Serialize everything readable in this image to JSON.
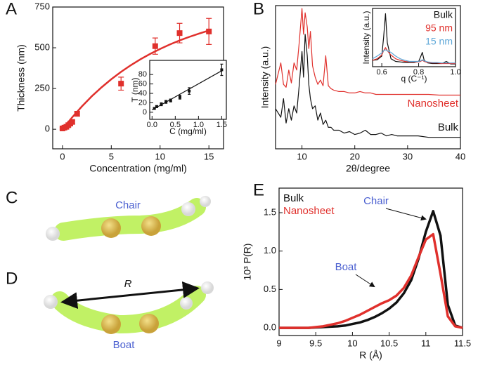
{
  "chart_data": [
    {
      "type": "scatter",
      "label": "A",
      "x_label": "Concentration (mg/ml)",
      "y_label": "Thickness (nm)",
      "xlim": [
        -1,
        16.5
      ],
      "ylim": [
        -120,
        750
      ],
      "xticks": [
        0,
        5,
        10,
        15
      ],
      "yticks": [
        0,
        250,
        500,
        750
      ],
      "series": [
        {
          "style": "line",
          "color": "#e0302c",
          "x": [
            0,
            1,
            2,
            3,
            4,
            5,
            6,
            7,
            8,
            9,
            10,
            11,
            12,
            13,
            14,
            15
          ],
          "values": [
            0,
            74,
            141,
            202,
            257,
            307,
            352,
            393,
            430,
            463,
            493,
            520,
            545,
            567,
            587,
            606
          ]
        },
        {
          "style": "markers",
          "color": "#e0302c",
          "x": [
            0,
            0.2,
            0.4,
            0.6,
            0.8,
            1,
            1.5,
            6,
            9.5,
            12,
            15
          ],
          "values": [
            5,
            10,
            15,
            25,
            35,
            45,
            95,
            280,
            510,
            590,
            600
          ],
          "errors": [
            5,
            5,
            5,
            5,
            5,
            8,
            15,
            40,
            50,
            60,
            80
          ]
        }
      ]
    },
    {
      "type": "scatter",
      "x_label": "C (mg/ml)",
      "y_label": "T (nm)",
      "xlim": [
        -0.05,
        1.6
      ],
      "ylim": [
        -15,
        110
      ],
      "xticks": [
        {
          "value": 0,
          "label": "0.0"
        },
        0.5,
        {
          "value": 1,
          "label": "1.0"
        },
        1.5
      ],
      "yticks": [
        0,
        20,
        40,
        60,
        80
      ],
      "series": [
        {
          "style": "line",
          "color": "#111111",
          "x": [
            0,
            1.5
          ],
          "values": [
            5,
            88
          ]
        },
        {
          "style": "markers",
          "color": "#111111",
          "x": [
            0.05,
            0.1,
            0.2,
            0.3,
            0.4,
            0.6,
            0.8,
            1.5
          ],
          "values": [
            8,
            12,
            17,
            22,
            25,
            32,
            45,
            90
          ],
          "errors": [
            2,
            2,
            3,
            3,
            3,
            4,
            7,
            12
          ]
        }
      ]
    },
    {
      "type": "line",
      "label": "B",
      "x_label": "2θ/degree",
      "y_label": "Intensity (a.u.)",
      "xlim": [
        5,
        40
      ],
      "ylim": [
        0,
        10
      ],
      "xticks": [
        10,
        20,
        30,
        40
      ],
      "x": [
        5,
        6,
        6.5,
        7,
        7.5,
        8,
        8.5,
        9,
        9.5,
        10,
        10.3,
        10.6,
        11,
        11.3,
        11.6,
        12,
        12.5,
        13,
        13.5,
        14,
        14.5,
        15,
        15.5,
        16,
        17,
        18,
        19,
        20,
        21,
        22,
        23,
        24,
        25,
        26,
        27,
        28,
        30,
        32,
        34,
        36,
        38,
        40
      ],
      "series": [
        {
          "name": "Bulk",
          "color": "#111111",
          "values": [
            2.8,
            2.2,
            3.5,
            1.8,
            2.8,
            2,
            3,
            2.5,
            4.5,
            6.8,
            5,
            8,
            6.5,
            4.5,
            3.5,
            2.8,
            3,
            2,
            2.5,
            1.7,
            2,
            1.5,
            1.5,
            1.3,
            1.3,
            1.1,
            1.2,
            1,
            1.1,
            1.3,
            1,
            1,
            1.1,
            0.9,
            1,
            0.9,
            0.9,
            0.9,
            0.8,
            0.8,
            0.8,
            0.8
          ]
        },
        {
          "name": "Nanosheet",
          "color": "#e0302c",
          "values": [
            4.5,
            6,
            4.5,
            4.3,
            5.5,
            4.6,
            6,
            5.5,
            7.5,
            9.8,
            8,
            9.5,
            8.5,
            7,
            8.2,
            5.8,
            5,
            4.5,
            4.8,
            4.4,
            6.5,
            4.4,
            4.2,
            4.1,
            4,
            4,
            3.9,
            3.9,
            4,
            3.9,
            3.9,
            3.8,
            3.8,
            3.8,
            3.8,
            3.8,
            3.8,
            3.8,
            3.8,
            3.75,
            3.75,
            3.75
          ]
        }
      ]
    },
    {
      "type": "line",
      "x_label": "q (C⁻¹)",
      "y_label": "Intensity (a.u.)",
      "xlim": [
        0.55,
        1.0
      ],
      "ylim": [
        0,
        1.1
      ],
      "xticks": [
        0.6,
        0.8,
        {
          "value": 1,
          "label": "1.0"
        }
      ],
      "x": [
        0.55,
        0.575,
        0.6,
        0.61,
        0.62,
        0.63,
        0.65,
        0.675,
        0.7,
        0.725,
        0.75,
        0.775,
        0.8,
        0.81,
        0.82,
        0.83,
        0.85,
        0.875,
        0.9,
        0.925,
        0.95,
        0.975,
        1.0
      ],
      "series": [
        {
          "name": "Bulk",
          "color": "#111111",
          "values": [
            0.12,
            0.13,
            0.2,
            0.55,
            1.0,
            0.45,
            0.15,
            0.1,
            0.09,
            0.08,
            0.08,
            0.08,
            0.1,
            0.18,
            0.27,
            0.12,
            0.07,
            0.06,
            0.06,
            0.06,
            0.1,
            0.05,
            0.05
          ]
        },
        {
          "name": "95 nm",
          "color": "#e0302c",
          "values": [
            0.12,
            0.15,
            0.22,
            0.3,
            0.36,
            0.3,
            0.22,
            0.15,
            0.12,
            0.1,
            0.09,
            0.09,
            0.09,
            0.1,
            0.12,
            0.1,
            0.08,
            0.07,
            0.07,
            0.06,
            0.06,
            0.06,
            0.06
          ]
        },
        {
          "name": "15 nm",
          "color": "#5fa8d8",
          "values": [
            0.15,
            0.2,
            0.26,
            0.3,
            0.32,
            0.3,
            0.27,
            0.2,
            0.15,
            0.12,
            0.1,
            0.1,
            0.1,
            0.11,
            0.13,
            0.11,
            0.09,
            0.08,
            0.08,
            0.07,
            0.07,
            0.07,
            0.07
          ]
        }
      ]
    },
    {
      "type": "line",
      "label": "E",
      "x_label": "R (Å)",
      "y_label": "10³ P(R)",
      "xlim": [
        9,
        11.5
      ],
      "ylim": [
        -0.1,
        1.82
      ],
      "xticks": [
        9,
        9.5,
        10,
        10.5,
        11,
        11.5
      ],
      "yticks": [
        {
          "value": 0,
          "label": "0.0"
        },
        0.5,
        {
          "value": 1,
          "label": "1.0"
        },
        1.5
      ],
      "x": [
        9,
        9.1,
        9.2,
        9.3,
        9.4,
        9.5,
        9.6,
        9.7,
        9.8,
        9.9,
        10,
        10.1,
        10.2,
        10.3,
        10.4,
        10.5,
        10.6,
        10.7,
        10.8,
        10.9,
        11,
        11.1,
        11.2,
        11.3,
        11.4,
        11.5
      ],
      "series": [
        {
          "name": "Bulk",
          "color": "#111111",
          "values": [
            0,
            0,
            0,
            0,
            0,
            0.005,
            0.01,
            0.015,
            0.02,
            0.03,
            0.05,
            0.07,
            0.1,
            0.14,
            0.19,
            0.25,
            0.33,
            0.45,
            0.62,
            0.9,
            1.25,
            1.52,
            1.2,
            0.3,
            0.03,
            0
          ]
        },
        {
          "name": "Nanosheet",
          "color": "#e0302c",
          "values": [
            0,
            0,
            0,
            0,
            0,
            0.01,
            0.02,
            0.04,
            0.06,
            0.09,
            0.13,
            0.17,
            0.22,
            0.27,
            0.32,
            0.36,
            0.42,
            0.52,
            0.68,
            0.92,
            1.15,
            1.22,
            0.7,
            0.15,
            0.02,
            0
          ]
        }
      ],
      "annotation_color": "#4a5fd0",
      "annotations": [
        "Chair",
        "Boat"
      ]
    }
  ],
  "diagrams": [
    {
      "label": "C",
      "text": "Chair"
    },
    {
      "label": "D",
      "text": "Boat",
      "distance": "R"
    }
  ]
}
